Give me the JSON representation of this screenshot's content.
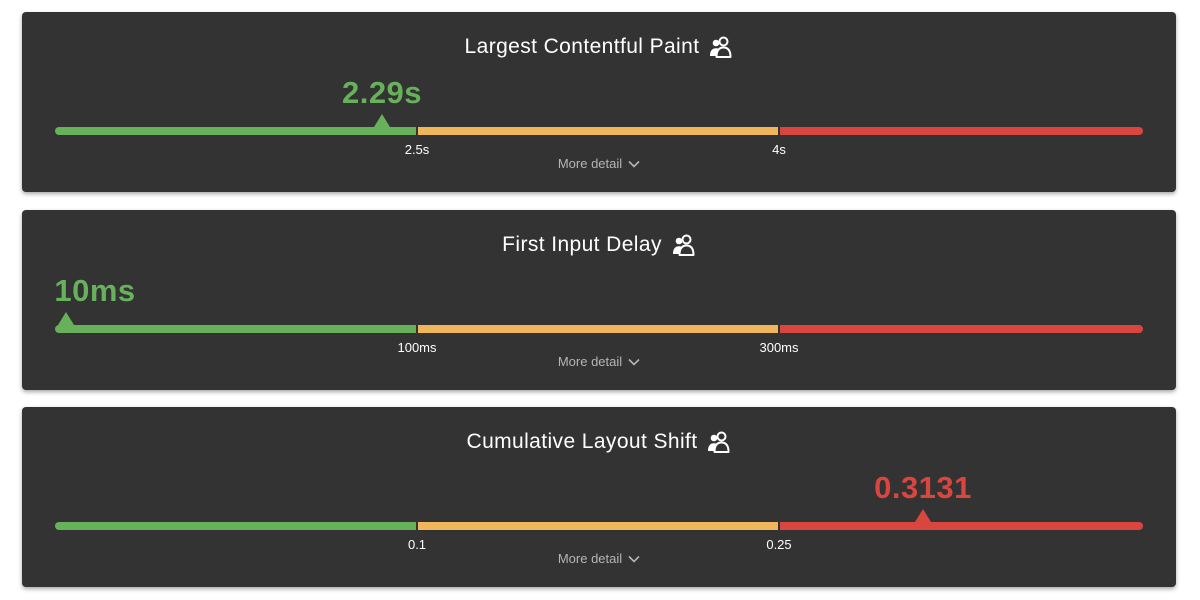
{
  "metrics": [
    {
      "title": "Largest Contentful Paint",
      "value_label": "2.29s",
      "value": 2.29,
      "thresholds": [
        2.5,
        4
      ],
      "threshold_labels": [
        "2.5s",
        "4s"
      ],
      "status": "good",
      "detail_label": "More detail",
      "icon": "users-icon"
    },
    {
      "title": "First Input Delay",
      "value_label": "10ms",
      "value": 10,
      "thresholds": [
        100,
        300
      ],
      "threshold_labels": [
        "100ms",
        "300ms"
      ],
      "status": "good",
      "detail_label": "More detail",
      "icon": "users-icon"
    },
    {
      "title": "Cumulative Layout Shift",
      "value_label": "0.3131",
      "value": 0.3131,
      "thresholds": [
        0.1,
        0.25
      ],
      "threshold_labels": [
        "0.1",
        "0.25"
      ],
      "status": "poor",
      "detail_label": "More detail",
      "icon": "users-icon"
    }
  ],
  "colors": {
    "good": "#67b15a",
    "needs_improvement": "#f0b65c",
    "poor": "#d9463f"
  }
}
